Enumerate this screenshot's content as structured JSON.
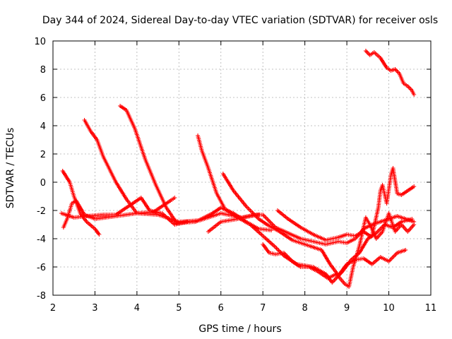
{
  "chart_data": {
    "type": "scatter",
    "title": "Day 344 of 2024, Sidereal Day-to-day VTEC variation (SDTVAR) for receiver osls",
    "xlabel": "GPS time / hours",
    "ylabel": "SDTVAR / TECUs",
    "xlim": [
      2,
      11
    ],
    "ylim": [
      -8,
      10
    ],
    "xticks": [
      2,
      3,
      4,
      5,
      6,
      7,
      8,
      9,
      10,
      11
    ],
    "yticks": [
      -8,
      -6,
      -4,
      -2,
      0,
      2,
      4,
      6,
      8,
      10
    ],
    "xtick_labels": [
      "2",
      "3",
      "4",
      "5",
      "6",
      "7",
      "8",
      "9",
      "10",
      "11"
    ],
    "ytick_labels": [
      "-8",
      "-6",
      "-4",
      "-2",
      "0",
      "2",
      "4",
      "6",
      "8",
      "10"
    ],
    "grid": true,
    "marker": "+",
    "color": "#ff0000",
    "series": [
      {
        "name": "s1",
        "points": [
          [
            2.23,
            0.8
          ],
          [
            2.4,
            0.0
          ],
          [
            2.5,
            -1.0
          ],
          [
            2.65,
            -2.2
          ],
          [
            2.8,
            -2.8
          ],
          [
            3.0,
            -3.3
          ],
          [
            3.1,
            -3.7
          ]
        ]
      },
      {
        "name": "s2",
        "points": [
          [
            2.25,
            -3.2
          ],
          [
            2.35,
            -2.5
          ],
          [
            2.45,
            -1.5
          ],
          [
            2.55,
            -1.3
          ],
          [
            2.75,
            -2.3
          ],
          [
            3.0,
            -2.6
          ],
          [
            3.5,
            -2.4
          ],
          [
            4.0,
            -2.2
          ],
          [
            4.5,
            -2.3
          ],
          [
            5.0,
            -2.8
          ],
          [
            5.5,
            -2.7
          ],
          [
            6.0,
            -2.2
          ],
          [
            6.5,
            -2.5
          ],
          [
            6.9,
            -2.3
          ]
        ]
      },
      {
        "name": "s3",
        "points": [
          [
            2.75,
            4.4
          ],
          [
            2.9,
            3.6
          ],
          [
            3.05,
            3.0
          ],
          [
            3.2,
            1.8
          ],
          [
            3.5,
            0.0
          ],
          [
            3.75,
            -1.2
          ],
          [
            4.0,
            -2.2
          ],
          [
            4.4,
            -2.1
          ],
          [
            4.8,
            -1.3
          ],
          [
            4.9,
            -1.1
          ]
        ]
      },
      {
        "name": "s4",
        "points": [
          [
            3.6,
            5.4
          ],
          [
            3.75,
            5.1
          ],
          [
            3.95,
            3.8
          ],
          [
            4.2,
            1.6
          ],
          [
            4.45,
            -0.2
          ],
          [
            4.7,
            -1.8
          ],
          [
            4.95,
            -2.9
          ],
          [
            5.4,
            -2.8
          ],
          [
            5.8,
            -2.2
          ],
          [
            6.0,
            -1.8
          ],
          [
            6.3,
            -2.2
          ],
          [
            6.6,
            -2.8
          ],
          [
            6.9,
            -3.3
          ],
          [
            7.2,
            -3.4
          ]
        ]
      },
      {
        "name": "s5",
        "points": [
          [
            2.2,
            -2.2
          ],
          [
            2.5,
            -2.5
          ],
          [
            2.8,
            -2.4
          ],
          [
            3.2,
            -2.3
          ],
          [
            3.5,
            -2.3
          ],
          [
            4.1,
            -1.1
          ],
          [
            4.3,
            -2.0
          ],
          [
            4.6,
            -2.2
          ],
          [
            4.9,
            -3.0
          ],
          [
            5.2,
            -2.8
          ]
        ]
      },
      {
        "name": "s6",
        "points": [
          [
            5.45,
            3.3
          ],
          [
            5.55,
            2.2
          ],
          [
            5.7,
            1.0
          ],
          [
            5.9,
            -0.8
          ],
          [
            6.1,
            -1.9
          ],
          [
            6.4,
            -2.5
          ],
          [
            6.7,
            -3.0
          ],
          [
            7.0,
            -3.8
          ],
          [
            7.3,
            -4.6
          ],
          [
            7.5,
            -5.2
          ],
          [
            7.8,
            -5.8
          ],
          [
            8.2,
            -6.0
          ],
          [
            8.5,
            -6.5
          ],
          [
            8.65,
            -7.1
          ],
          [
            8.9,
            -6.3
          ],
          [
            9.1,
            -5.5
          ],
          [
            9.3,
            -5.0
          ],
          [
            9.5,
            -4.0
          ],
          [
            9.7,
            -3.6
          ],
          [
            9.9,
            -3.0
          ],
          [
            10.1,
            -3.2
          ],
          [
            10.3,
            -2.8
          ],
          [
            10.55,
            -2.6
          ]
        ]
      },
      {
        "name": "s7",
        "points": [
          [
            6.05,
            0.6
          ],
          [
            6.3,
            -0.6
          ],
          [
            6.6,
            -1.7
          ],
          [
            6.9,
            -2.6
          ],
          [
            7.1,
            -3.0
          ],
          [
            7.4,
            -3.5
          ],
          [
            7.7,
            -4.1
          ],
          [
            8.1,
            -4.5
          ],
          [
            8.4,
            -4.8
          ],
          [
            8.6,
            -5.8
          ],
          [
            8.8,
            -6.6
          ],
          [
            9.0,
            -5.8
          ],
          [
            9.2,
            -5.5
          ],
          [
            9.4,
            -5.4
          ],
          [
            9.6,
            -5.8
          ],
          [
            9.8,
            -5.3
          ],
          [
            10.0,
            -5.6
          ],
          [
            10.2,
            -5.0
          ],
          [
            10.4,
            -4.8
          ]
        ]
      },
      {
        "name": "s8",
        "points": [
          [
            5.7,
            -3.5
          ],
          [
            6.0,
            -2.8
          ],
          [
            6.4,
            -2.6
          ],
          [
            6.8,
            -2.3
          ],
          [
            7.0,
            -2.3
          ],
          [
            7.3,
            -3.2
          ],
          [
            7.6,
            -3.6
          ],
          [
            7.9,
            -4.0
          ],
          [
            8.2,
            -4.2
          ],
          [
            8.5,
            -4.4
          ],
          [
            8.8,
            -4.2
          ],
          [
            9.0,
            -4.3
          ],
          [
            9.2,
            -4.0
          ],
          [
            9.4,
            -3.3
          ],
          [
            9.6,
            -3.0
          ],
          [
            9.8,
            -2.8
          ],
          [
            10.0,
            -2.6
          ],
          [
            10.2,
            -2.4
          ],
          [
            10.4,
            -2.6
          ],
          [
            10.6,
            -2.8
          ]
        ]
      },
      {
        "name": "s9",
        "points": [
          [
            7.35,
            -2.0
          ],
          [
            7.6,
            -2.6
          ],
          [
            7.9,
            -3.2
          ],
          [
            8.2,
            -3.7
          ],
          [
            8.5,
            -4.1
          ],
          [
            8.8,
            -3.9
          ],
          [
            9.0,
            -3.7
          ],
          [
            9.2,
            -3.8
          ],
          [
            9.4,
            -3.5
          ],
          [
            9.55,
            -3.8
          ]
        ]
      },
      {
        "name": "s10",
        "points": [
          [
            7.0,
            -4.4
          ],
          [
            7.15,
            -5.0
          ],
          [
            7.3,
            -5.1
          ],
          [
            7.5,
            -5.0
          ],
          [
            7.7,
            -5.6
          ],
          [
            7.9,
            -6.0
          ],
          [
            8.1,
            -6.0
          ],
          [
            8.3,
            -6.3
          ],
          [
            8.55,
            -6.8
          ],
          [
            8.75,
            -6.5
          ],
          [
            8.95,
            -7.2
          ],
          [
            9.05,
            -7.4
          ],
          [
            9.15,
            -6.0
          ],
          [
            9.3,
            -4.5
          ],
          [
            9.45,
            -2.5
          ],
          [
            9.55,
            -3.0
          ],
          [
            9.7,
            -4.0
          ],
          [
            9.85,
            -3.5
          ],
          [
            10.0,
            -2.2
          ],
          [
            10.15,
            -3.5
          ],
          [
            10.3,
            -3.0
          ],
          [
            10.45,
            -3.5
          ],
          [
            10.6,
            -3.0
          ]
        ]
      },
      {
        "name": "s11",
        "points": [
          [
            9.6,
            -3.8
          ],
          [
            9.75,
            -1.8
          ],
          [
            9.8,
            -0.6
          ],
          [
            9.85,
            -0.2
          ],
          [
            9.95,
            -1.5
          ],
          [
            10.05,
            0.5
          ],
          [
            10.1,
            1.0
          ],
          [
            10.2,
            -0.8
          ],
          [
            10.3,
            -0.9
          ],
          [
            10.45,
            -0.6
          ],
          [
            10.6,
            -0.3
          ]
        ]
      },
      {
        "name": "s12",
        "points": [
          [
            9.45,
            9.3
          ],
          [
            9.55,
            9.0
          ],
          [
            9.65,
            9.2
          ],
          [
            9.8,
            8.8
          ],
          [
            9.95,
            8.1
          ],
          [
            10.05,
            7.9
          ],
          [
            10.15,
            8.0
          ],
          [
            10.25,
            7.7
          ],
          [
            10.35,
            7.0
          ],
          [
            10.45,
            6.8
          ],
          [
            10.55,
            6.5
          ],
          [
            10.6,
            6.2
          ]
        ]
      }
    ]
  }
}
